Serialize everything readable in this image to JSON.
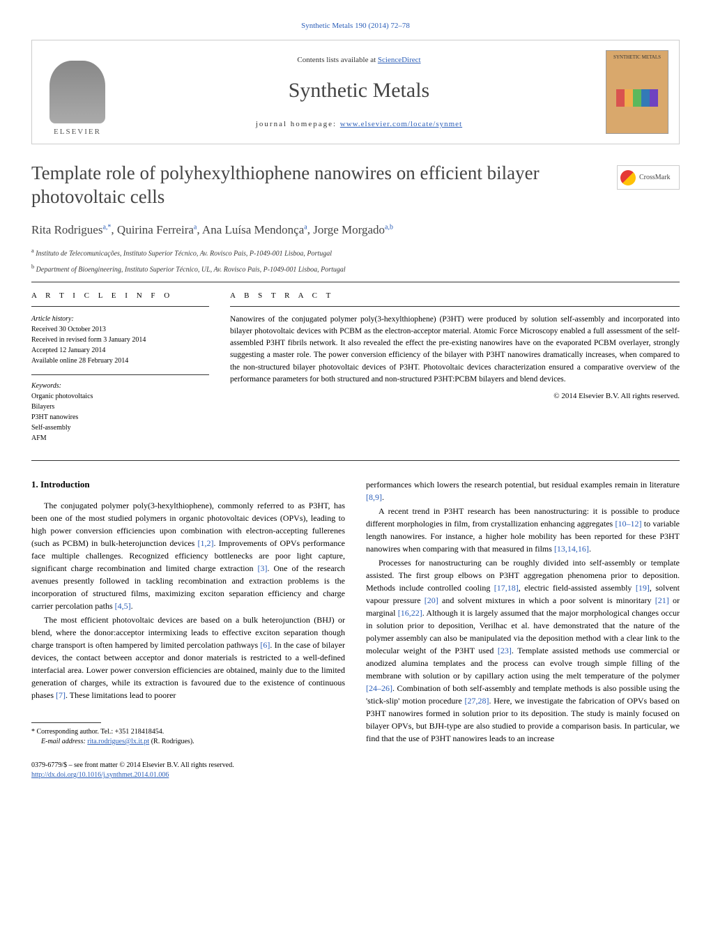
{
  "citation": "Synthetic Metals 190 (2014) 72–78",
  "header": {
    "contents_prefix": "Contents lists available at ",
    "contents_link": "ScienceDirect",
    "journal_name": "Synthetic Metals",
    "homepage_label": "journal homepage: ",
    "homepage_url": "www.elsevier.com/locate/synmet",
    "elsevier_label": "ELSEVIER",
    "cover_label": "SYNTHETIC METALS",
    "cover_colors": [
      "#d9534f",
      "#f0ad4e",
      "#5cb85c",
      "#337ab7",
      "#6f42c1"
    ]
  },
  "crossmark_label": "CrossMark",
  "title": "Template role of polyhexylthiophene nanowires on efficient bilayer photovoltaic cells",
  "authors_html": "Rita Rodrigues<sup>a,*</sup>, Quirina Ferreira<sup>a</sup>, Ana Luísa Mendonça<sup>a</sup>, Jorge Morgado<sup>a,b</sup>",
  "affiliations": [
    {
      "sup": "a",
      "text": "Instituto de Telecomunicações, Instituto Superior Técnico, Av. Rovisco Pais, P-1049-001 Lisboa, Portugal"
    },
    {
      "sup": "b",
      "text": "Department of Bioengineering, Instituto Superior Técnico, UL, Av. Rovisco Pais, P-1049-001 Lisboa, Portugal"
    }
  ],
  "article_info": {
    "heading": "A R T I C L E   I N F O",
    "history_label": "Article history:",
    "history": [
      "Received 30 October 2013",
      "Received in revised form 3 January 2014",
      "Accepted 12 January 2014",
      "Available online 28 February 2014"
    ],
    "keywords_label": "Keywords:",
    "keywords": [
      "Organic photovoltaics",
      "Bilayers",
      "P3HT nanowires",
      "Self-assembly",
      "AFM"
    ]
  },
  "abstract": {
    "heading": "A B S T R A C T",
    "text": "Nanowires of the conjugated polymer poly(3-hexylthiophene) (P3HT) were produced by solution self-assembly and incorporated into bilayer photovoltaic devices with PCBM as the electron-acceptor material. Atomic Force Microscopy enabled a full assessment of the self-assembled P3HT fibrils network. It also revealed the effect the pre-existing nanowires have on the evaporated PCBM overlayer, strongly suggesting a master role. The power conversion efficiency of the bilayer with P3HT nanowires dramatically increases, when compared to the non-structured bilayer photovoltaic devices of P3HT. Photovoltaic devices characterization ensured a comparative overview of the performance parameters for both structured and non-structured P3HT:PCBM bilayers and blend devices.",
    "copyright": "© 2014 Elsevier B.V. All rights reserved."
  },
  "intro_heading": "1.  Introduction",
  "body": {
    "left": [
      {
        "text": "The conjugated polymer poly(3-hexylthiophene), commonly referred to as P3HT, has been one of the most studied polymers in organic photovoltaic devices (OPVs), leading to high power conversion efficiencies upon combination with electron-accepting fullerenes (such as PCBM) in bulk-heterojunction devices ",
        "refs": "[1,2]",
        "tail": ". Improvements of OPVs performance face multiple challenges. Recognized efficiency bottlenecks are poor light capture, significant charge recombination and limited charge extraction ",
        "refs2": "[3]",
        "tail2": ". One of the research avenues presently followed in tackling recombination and extraction problems is the incorporation of structured films, maximizing exciton separation efficiency and charge carrier percolation paths ",
        "refs3": "[4,5]",
        "tail3": "."
      },
      {
        "text": "The most efficient photovoltaic devices are based on a bulk heterojunction (BHJ) or blend, where the donor:acceptor intermixing leads to effective exciton separation though charge transport is often hampered by limited percolation pathways ",
        "refs": "[6]",
        "tail": ". In the case of bilayer devices, the contact between acceptor and donor materials is restricted to a well-defined interfacial area. Lower power conversion efficiencies are obtained, mainly due to the limited generation of charges, while its extraction is favoured due to the existence of continuous phases ",
        "refs2": "[7]",
        "tail2": ". These limitations lead to poorer"
      }
    ],
    "right": [
      {
        "text": "performances which lowers the research potential, but residual examples remain in literature ",
        "refs": "[8,9]",
        "tail": "."
      },
      {
        "text": "A recent trend in P3HT research has been nanostructuring: it is possible to produce different morphologies in film, from crystallization enhancing aggregates ",
        "refs": "[10–12]",
        "tail": " to variable length nanowires. For instance, a higher hole mobility has been reported for these P3HT nanowires when comparing with that measured in films ",
        "refs2": "[13,14,16]",
        "tail2": "."
      },
      {
        "text": "Processes for nanostructuring can be roughly divided into self-assembly or template assisted. The first group elbows on P3HT aggregation phenomena prior to deposition. Methods include controlled cooling ",
        "refs": "[17,18]",
        "tail": ", electric field-assisted assembly ",
        "refs2": "[19]",
        "tail2": ", solvent vapour pressure ",
        "refs3": "[20]",
        "tail3": " and solvent mixtures in which a poor solvent is minoritary ",
        "refs4": "[21]",
        "tail4": " or marginal ",
        "refs5": "[16,22]",
        "tail5": ". Although it is largely assumed that the major morphological changes occur in solution prior to deposition, Verilhac et al. have demonstrated that the nature of the polymer assembly can also be manipulated via the deposition method with a clear link to the molecular weight of the P3HT used ",
        "refs6": "[23]",
        "tail6": ". Template assisted methods use commercial or anodized alumina templates and the process can evolve trough simple filling of the membrane with solution or by capillary action using the melt temperature of the polymer ",
        "refs7": "[24–26]",
        "tail7": ". Combination of both self-assembly and template methods is also possible using the 'stick-slip' motion procedure ",
        "refs8": "[27,28]",
        "tail8": ". Here, we investigate the fabrication of OPVs based on P3HT nanowires formed in solution prior to its deposition. The study is mainly focused on bilayer OPVs, but BJH-type are also studied to provide a comparison basis. In particular, we find that the use of P3HT nanowires leads to an increase"
      }
    ]
  },
  "footnote": {
    "corresponding": "* Corresponding author. Tel.: +351 218418454.",
    "email_label": "E-mail address: ",
    "email": "rita.rodrigues@lx.it.pt",
    "email_suffix": " (R. Rodrigues)."
  },
  "bottom": {
    "issn": "0379-6779/$ – see front matter © 2014 Elsevier B.V. All rights reserved.",
    "doi": "http://dx.doi.org/10.1016/j.synthmet.2014.01.006"
  },
  "colors": {
    "link": "#2b5eb8",
    "text": "#000000",
    "heading": "#444444",
    "rule": "#333333"
  },
  "typography": {
    "body_fontsize_pt": 9,
    "title_fontsize_pt": 20,
    "journal_name_fontsize_pt": 22,
    "authors_fontsize_pt": 13,
    "abstract_fontsize_pt": 8.5,
    "font_family": "Georgia, Times New Roman, serif"
  }
}
